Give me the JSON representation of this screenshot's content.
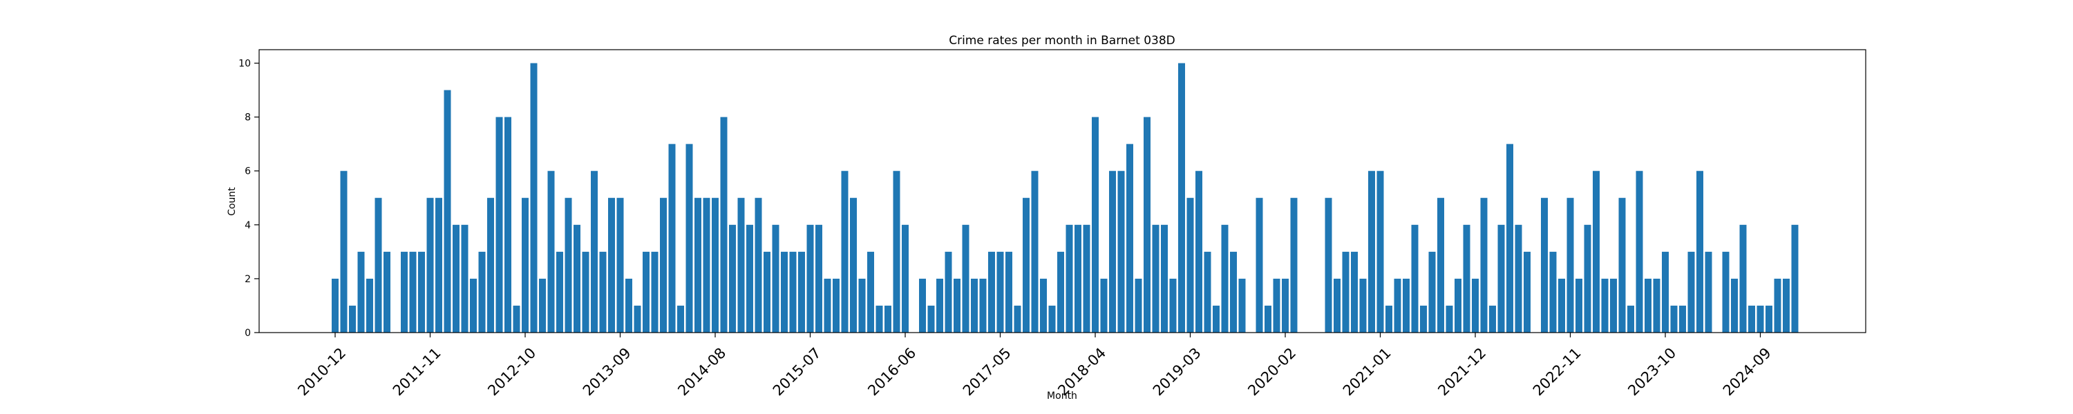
{
  "chart_data": {
    "type": "bar",
    "title": "Crime rates per month in Barnet 038D",
    "xlabel": "Month",
    "ylabel": "Count",
    "ylim": [
      0,
      10.5
    ],
    "yticks": [
      0,
      2,
      4,
      6,
      8,
      10
    ],
    "grid": false,
    "legend": "none",
    "bar_color": "#1f77b4",
    "start_month": "2010-12",
    "x_tick_labels": [
      "2010-12",
      "2011-11",
      "2012-10",
      "2013-09",
      "2014-08",
      "2015-07",
      "2016-06",
      "2017-05",
      "2018-04",
      "2019-03",
      "2020-02",
      "2021-01",
      "2021-12",
      "2022-11",
      "2023-10",
      "2024-09"
    ],
    "values": [
      2,
      6,
      1,
      3,
      2,
      5,
      3,
      0,
      3,
      3,
      3,
      5,
      5,
      9,
      4,
      4,
      2,
      3,
      5,
      8,
      8,
      1,
      5,
      10,
      2,
      6,
      3,
      5,
      4,
      3,
      6,
      3,
      5,
      5,
      2,
      1,
      3,
      3,
      5,
      7,
      1,
      7,
      5,
      5,
      5,
      8,
      4,
      5,
      4,
      5,
      3,
      4,
      3,
      3,
      3,
      4,
      4,
      2,
      2,
      6,
      5,
      2,
      3,
      1,
      1,
      6,
      4,
      0,
      2,
      1,
      2,
      3,
      2,
      4,
      2,
      2,
      3,
      3,
      3,
      1,
      5,
      6,
      2,
      1,
      3,
      4,
      4,
      4,
      8,
      2,
      6,
      6,
      7,
      2,
      8,
      4,
      4,
      2,
      10,
      5,
      6,
      3,
      1,
      4,
      3,
      2,
      0,
      5,
      1,
      2,
      2,
      5,
      0,
      0,
      0,
      5,
      2,
      3,
      3,
      2,
      6,
      6,
      1,
      2,
      2,
      4,
      1,
      3,
      5,
      1,
      2,
      4,
      2,
      5,
      1,
      4,
      7,
      4,
      3,
      0,
      5,
      3,
      2,
      5,
      2,
      4,
      6,
      2,
      2,
      5,
      1,
      6,
      2,
      2,
      3,
      1,
      1,
      3,
      6,
      3,
      0,
      3,
      2,
      4,
      1,
      1,
      1,
      2,
      2,
      4
    ]
  }
}
